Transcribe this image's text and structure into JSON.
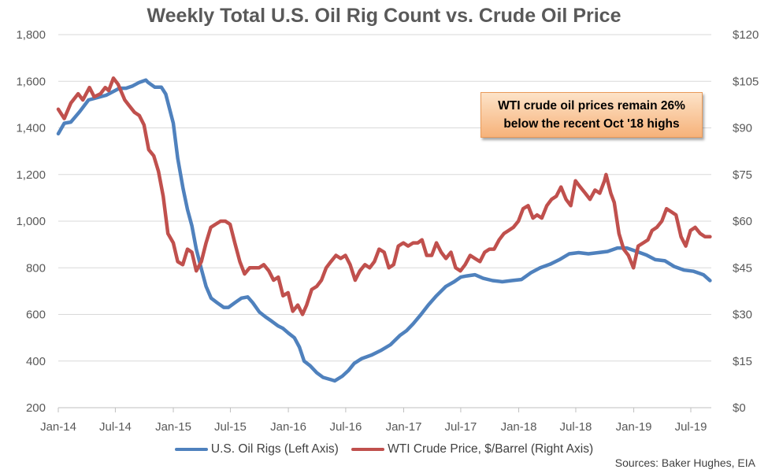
{
  "chart_data": {
    "type": "line",
    "title": "Weekly Total U.S. Oil Rig Count vs. Crude Oil Price",
    "x_tick_labels": [
      "Jan-14",
      "Jul-14",
      "Jan-15",
      "Jul-15",
      "Jan-16",
      "Jul-16",
      "Jan-17",
      "Jul-17",
      "Jan-18",
      "Jul-18",
      "Jan-19",
      "Jul-19"
    ],
    "left_axis": {
      "range": [
        200,
        1800
      ],
      "ticks": [
        "200",
        "400",
        "600",
        "800",
        "1,000",
        "1,200",
        "1,400",
        "1,600",
        "1,800"
      ]
    },
    "right_axis": {
      "range": [
        0,
        120
      ],
      "ticks": [
        "$0",
        "$15",
        "$30",
        "$45",
        "$60",
        "$75",
        "$90",
        "$105",
        "$120"
      ]
    },
    "grid": "horizontal",
    "legend_position": "bottom",
    "series": [
      {
        "name": "U.S. Oil Rigs (Left Axis)",
        "axis": "left",
        "color": "#4f81bd",
        "points": [
          [
            "2014-01-01",
            1375
          ],
          [
            "2014-01-20",
            1420
          ],
          [
            "2014-02-10",
            1425
          ],
          [
            "2014-03-10",
            1470
          ],
          [
            "2014-04-07",
            1520
          ],
          [
            "2014-05-05",
            1530
          ],
          [
            "2014-06-02",
            1540
          ],
          [
            "2014-06-30",
            1560
          ],
          [
            "2014-07-14",
            1570
          ],
          [
            "2014-08-04",
            1570
          ],
          [
            "2014-08-25",
            1580
          ],
          [
            "2014-09-15",
            1595
          ],
          [
            "2014-10-06",
            1605
          ],
          [
            "2014-10-13",
            1595
          ],
          [
            "2014-11-03",
            1575
          ],
          [
            "2014-11-24",
            1575
          ],
          [
            "2014-12-08",
            1545
          ],
          [
            "2015-01-01",
            1420
          ],
          [
            "2015-01-15",
            1270
          ],
          [
            "2015-02-01",
            1140
          ],
          [
            "2015-02-15",
            1050
          ],
          [
            "2015-03-01",
            980
          ],
          [
            "2015-03-15",
            880
          ],
          [
            "2015-04-01",
            790
          ],
          [
            "2015-04-15",
            720
          ],
          [
            "2015-05-01",
            670
          ],
          [
            "2015-05-20",
            650
          ],
          [
            "2015-06-10",
            630
          ],
          [
            "2015-06-25",
            630
          ],
          [
            "2015-07-15",
            650
          ],
          [
            "2015-08-05",
            670
          ],
          [
            "2015-08-25",
            675
          ],
          [
            "2015-09-10",
            650
          ],
          [
            "2015-10-01",
            610
          ],
          [
            "2015-10-20",
            590
          ],
          [
            "2015-11-10",
            570
          ],
          [
            "2015-11-30",
            550
          ],
          [
            "2015-12-15",
            540
          ],
          [
            "2016-01-01",
            520
          ],
          [
            "2016-01-20",
            500
          ],
          [
            "2016-02-05",
            460
          ],
          [
            "2016-02-20",
            400
          ],
          [
            "2016-03-10",
            380
          ],
          [
            "2016-03-31",
            350
          ],
          [
            "2016-04-20",
            330
          ],
          [
            "2016-05-15",
            320
          ],
          [
            "2016-05-27",
            315
          ],
          [
            "2016-06-20",
            335
          ],
          [
            "2016-07-10",
            360
          ],
          [
            "2016-07-28",
            390
          ],
          [
            "2016-08-20",
            410
          ],
          [
            "2016-09-20",
            425
          ],
          [
            "2016-10-20",
            445
          ],
          [
            "2016-11-20",
            470
          ],
          [
            "2016-12-20",
            510
          ],
          [
            "2017-01-10",
            530
          ],
          [
            "2017-01-31",
            560
          ],
          [
            "2017-02-25",
            600
          ],
          [
            "2017-03-20",
            640
          ],
          [
            "2017-04-15",
            680
          ],
          [
            "2017-05-15",
            720
          ],
          [
            "2017-06-10",
            740
          ],
          [
            "2017-07-01",
            760
          ],
          [
            "2017-07-20",
            765
          ],
          [
            "2017-08-15",
            770
          ],
          [
            "2017-09-10",
            755
          ],
          [
            "2017-10-10",
            745
          ],
          [
            "2017-11-10",
            740
          ],
          [
            "2017-12-10",
            745
          ],
          [
            "2018-01-10",
            750
          ],
          [
            "2018-02-10",
            780
          ],
          [
            "2018-03-10",
            800
          ],
          [
            "2018-04-10",
            815
          ],
          [
            "2018-05-10",
            835
          ],
          [
            "2018-06-10",
            860
          ],
          [
            "2018-07-10",
            865
          ],
          [
            "2018-08-10",
            860
          ],
          [
            "2018-09-10",
            865
          ],
          [
            "2018-10-10",
            870
          ],
          [
            "2018-11-10",
            885
          ],
          [
            "2018-12-10",
            885
          ],
          [
            "2019-01-10",
            870
          ],
          [
            "2019-02-10",
            855
          ],
          [
            "2019-03-10",
            835
          ],
          [
            "2019-04-10",
            830
          ],
          [
            "2019-05-10",
            805
          ],
          [
            "2019-06-10",
            790
          ],
          [
            "2019-07-10",
            785
          ],
          [
            "2019-08-10",
            770
          ],
          [
            "2019-08-31",
            745
          ]
        ]
      },
      {
        "name": "WTI Crude Price, $/Barrel (Right Axis)",
        "axis": "right",
        "color": "#c0504d",
        "points": [
          [
            "2014-01-01",
            96
          ],
          [
            "2014-01-20",
            93
          ],
          [
            "2014-02-10",
            98
          ],
          [
            "2014-03-05",
            101
          ],
          [
            "2014-03-20",
            99
          ],
          [
            "2014-04-10",
            103
          ],
          [
            "2014-04-25",
            100
          ],
          [
            "2014-05-15",
            101
          ],
          [
            "2014-05-30",
            103
          ],
          [
            "2014-06-10",
            102
          ],
          [
            "2014-06-25",
            106
          ],
          [
            "2014-07-10",
            104
          ],
          [
            "2014-07-31",
            99
          ],
          [
            "2014-08-15",
            97
          ],
          [
            "2014-08-31",
            95
          ],
          [
            "2014-09-15",
            94
          ],
          [
            "2014-09-30",
            91
          ],
          [
            "2014-10-15",
            83
          ],
          [
            "2014-10-31",
            81
          ],
          [
            "2014-11-15",
            76
          ],
          [
            "2014-11-30",
            68
          ],
          [
            "2014-12-15",
            56
          ],
          [
            "2015-01-01",
            53
          ],
          [
            "2015-01-15",
            47
          ],
          [
            "2015-01-31",
            46
          ],
          [
            "2015-02-15",
            51
          ],
          [
            "2015-03-01",
            50
          ],
          [
            "2015-03-15",
            44
          ],
          [
            "2015-03-31",
            47
          ],
          [
            "2015-04-15",
            53
          ],
          [
            "2015-04-30",
            58
          ],
          [
            "2015-05-15",
            59
          ],
          [
            "2015-05-31",
            60
          ],
          [
            "2015-06-15",
            60
          ],
          [
            "2015-06-30",
            59
          ],
          [
            "2015-07-15",
            53
          ],
          [
            "2015-07-31",
            47
          ],
          [
            "2015-08-15",
            43
          ],
          [
            "2015-08-31",
            45
          ],
          [
            "2015-09-15",
            45
          ],
          [
            "2015-09-30",
            45
          ],
          [
            "2015-10-15",
            46
          ],
          [
            "2015-10-31",
            44
          ],
          [
            "2015-11-15",
            41
          ],
          [
            "2015-11-30",
            42
          ],
          [
            "2015-12-15",
            36
          ],
          [
            "2015-12-31",
            37
          ],
          [
            "2016-01-15",
            31
          ],
          [
            "2016-01-31",
            33
          ],
          [
            "2016-02-15",
            30
          ],
          [
            "2016-02-28",
            33
          ],
          [
            "2016-03-15",
            38
          ],
          [
            "2016-03-31",
            39
          ],
          [
            "2016-04-15",
            41
          ],
          [
            "2016-04-30",
            45
          ],
          [
            "2016-05-15",
            47
          ],
          [
            "2016-05-31",
            49
          ],
          [
            "2016-06-15",
            48
          ],
          [
            "2016-06-30",
            49
          ],
          [
            "2016-07-15",
            46
          ],
          [
            "2016-07-31",
            41
          ],
          [
            "2016-08-15",
            44
          ],
          [
            "2016-08-31",
            46
          ],
          [
            "2016-09-15",
            45
          ],
          [
            "2016-09-30",
            47
          ],
          [
            "2016-10-15",
            51
          ],
          [
            "2016-10-31",
            50
          ],
          [
            "2016-11-15",
            45
          ],
          [
            "2016-11-30",
            46
          ],
          [
            "2016-12-15",
            52
          ],
          [
            "2016-12-31",
            53
          ],
          [
            "2017-01-15",
            52
          ],
          [
            "2017-01-31",
            53
          ],
          [
            "2017-02-15",
            53
          ],
          [
            "2017-02-28",
            54
          ],
          [
            "2017-03-15",
            49
          ],
          [
            "2017-03-31",
            49
          ],
          [
            "2017-04-15",
            53
          ],
          [
            "2017-04-30",
            50
          ],
          [
            "2017-05-15",
            48
          ],
          [
            "2017-05-31",
            50
          ],
          [
            "2017-06-15",
            45
          ],
          [
            "2017-06-30",
            44
          ],
          [
            "2017-07-15",
            46
          ],
          [
            "2017-07-31",
            49
          ],
          [
            "2017-08-15",
            48
          ],
          [
            "2017-08-31",
            47
          ],
          [
            "2017-09-15",
            50
          ],
          [
            "2017-09-30",
            51
          ],
          [
            "2017-10-15",
            51
          ],
          [
            "2017-10-31",
            54
          ],
          [
            "2017-11-15",
            56
          ],
          [
            "2017-11-30",
            57
          ],
          [
            "2017-12-15",
            58
          ],
          [
            "2017-12-31",
            60
          ],
          [
            "2018-01-15",
            64
          ],
          [
            "2018-01-31",
            65
          ],
          [
            "2018-02-15",
            61
          ],
          [
            "2018-02-28",
            62
          ],
          [
            "2018-03-15",
            61
          ],
          [
            "2018-03-31",
            65
          ],
          [
            "2018-04-15",
            67
          ],
          [
            "2018-04-30",
            68
          ],
          [
            "2018-05-15",
            71
          ],
          [
            "2018-05-31",
            67
          ],
          [
            "2018-06-15",
            65
          ],
          [
            "2018-06-30",
            73
          ],
          [
            "2018-07-15",
            71
          ],
          [
            "2018-07-31",
            69
          ],
          [
            "2018-08-15",
            67
          ],
          [
            "2018-08-31",
            70
          ],
          [
            "2018-09-15",
            69
          ],
          [
            "2018-09-30",
            73
          ],
          [
            "2018-10-05",
            75
          ],
          [
            "2018-10-20",
            69
          ],
          [
            "2018-10-31",
            66
          ],
          [
            "2018-11-15",
            56
          ],
          [
            "2018-11-30",
            51
          ],
          [
            "2018-12-15",
            49
          ],
          [
            "2018-12-31",
            45
          ],
          [
            "2019-01-15",
            52
          ],
          [
            "2019-01-31",
            53
          ],
          [
            "2019-02-15",
            54
          ],
          [
            "2019-02-28",
            57
          ],
          [
            "2019-03-15",
            58
          ],
          [
            "2019-03-31",
            60
          ],
          [
            "2019-04-15",
            64
          ],
          [
            "2019-04-30",
            63
          ],
          [
            "2019-05-15",
            62
          ],
          [
            "2019-05-31",
            55
          ],
          [
            "2019-06-15",
            52
          ],
          [
            "2019-06-30",
            57
          ],
          [
            "2019-07-15",
            58
          ],
          [
            "2019-07-31",
            56
          ],
          [
            "2019-08-15",
            55
          ],
          [
            "2019-08-31",
            55
          ]
        ]
      }
    ],
    "annotation": {
      "line1": "WTI crude oil prices remain 26%",
      "line2": "below the recent Oct '18 highs"
    },
    "source": "Sources: Baker Hughes, EIA"
  }
}
